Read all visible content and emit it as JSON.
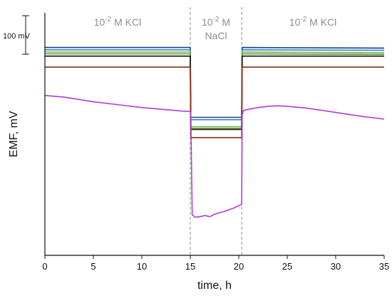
{
  "chart_data": {
    "type": "line",
    "xlabel": "time, h",
    "ylabel": "EMF, mV",
    "xlim": [
      0,
      35
    ],
    "x_ticks": [
      "0",
      "5",
      "10",
      "15",
      "20",
      "25",
      "30",
      "35"
    ],
    "ylim": [
      -350,
      70
    ],
    "scale_bar": {
      "label": "100 mV",
      "value": 100
    },
    "regions": [
      {
        "label_base": "10",
        "label_exp": "-2",
        "label_rest": " M KCl",
        "x_start": 0,
        "x_end": 15
      },
      {
        "label_base": "10",
        "label_exp": "-2",
        "label_rest": " M",
        "label_line2": "NaCl",
        "x_start": 15,
        "x_end": 20.3
      },
      {
        "label_base": "10",
        "label_exp": "-2",
        "label_rest": " M KCl",
        "x_start": 20.3,
        "x_end": 35
      }
    ],
    "boundaries": [
      15,
      20.3
    ],
    "series": [
      {
        "color": "#1f3f8f",
        "x": [
          0,
          15,
          15.05,
          20.3,
          20.35,
          35
        ],
        "y": [
          10,
          10,
          -111,
          -111,
          10,
          9
        ]
      },
      {
        "color": "#2f86c8",
        "x": [
          0,
          15,
          15.05,
          20.3,
          20.35,
          35
        ],
        "y": [
          6,
          6,
          -115,
          -115,
          6,
          5
        ]
      },
      {
        "color": "#5bbf44",
        "x": [
          0,
          15,
          15.05,
          20.3,
          20.35,
          35
        ],
        "y": [
          2,
          2,
          -127,
          -127,
          2,
          1
        ]
      },
      {
        "color": "#7a8a3a",
        "x": [
          0,
          15,
          15.05,
          20.3,
          20.35,
          35
        ],
        "y": [
          -1,
          -1,
          -130,
          -130,
          -1,
          -2
        ]
      },
      {
        "color": "#111111",
        "x": [
          0,
          15,
          15.05,
          20.3,
          20.35,
          35
        ],
        "y": [
          -5,
          -5,
          -132,
          -132,
          -5,
          -5
        ]
      },
      {
        "color": "#8b2c10",
        "x": [
          0,
          15,
          15.05,
          20.3,
          20.35,
          35
        ],
        "y": [
          -24,
          -24,
          -146,
          -146,
          -24,
          -24
        ]
      },
      {
        "color": "#b03cd8",
        "x": [
          0,
          2,
          5,
          8,
          10,
          12,
          14,
          15,
          15.05,
          15.2,
          15.5,
          16,
          16.5,
          17,
          17.5,
          18,
          18.5,
          19,
          19.5,
          20,
          20.3,
          20.35,
          20.5,
          21,
          22,
          23,
          24,
          25,
          27,
          29,
          31,
          33,
          35
        ],
        "y": [
          -73,
          -76,
          -84,
          -90,
          -94,
          -97,
          -100,
          -101,
          -103,
          -280,
          -284,
          -283,
          -281,
          -283,
          -279,
          -276,
          -274,
          -271,
          -268,
          -264,
          -262,
          -106,
          -99,
          -97,
          -94,
          -92,
          -91,
          -92,
          -95,
          -100,
          -105,
          -110,
          -114
        ]
      }
    ]
  }
}
